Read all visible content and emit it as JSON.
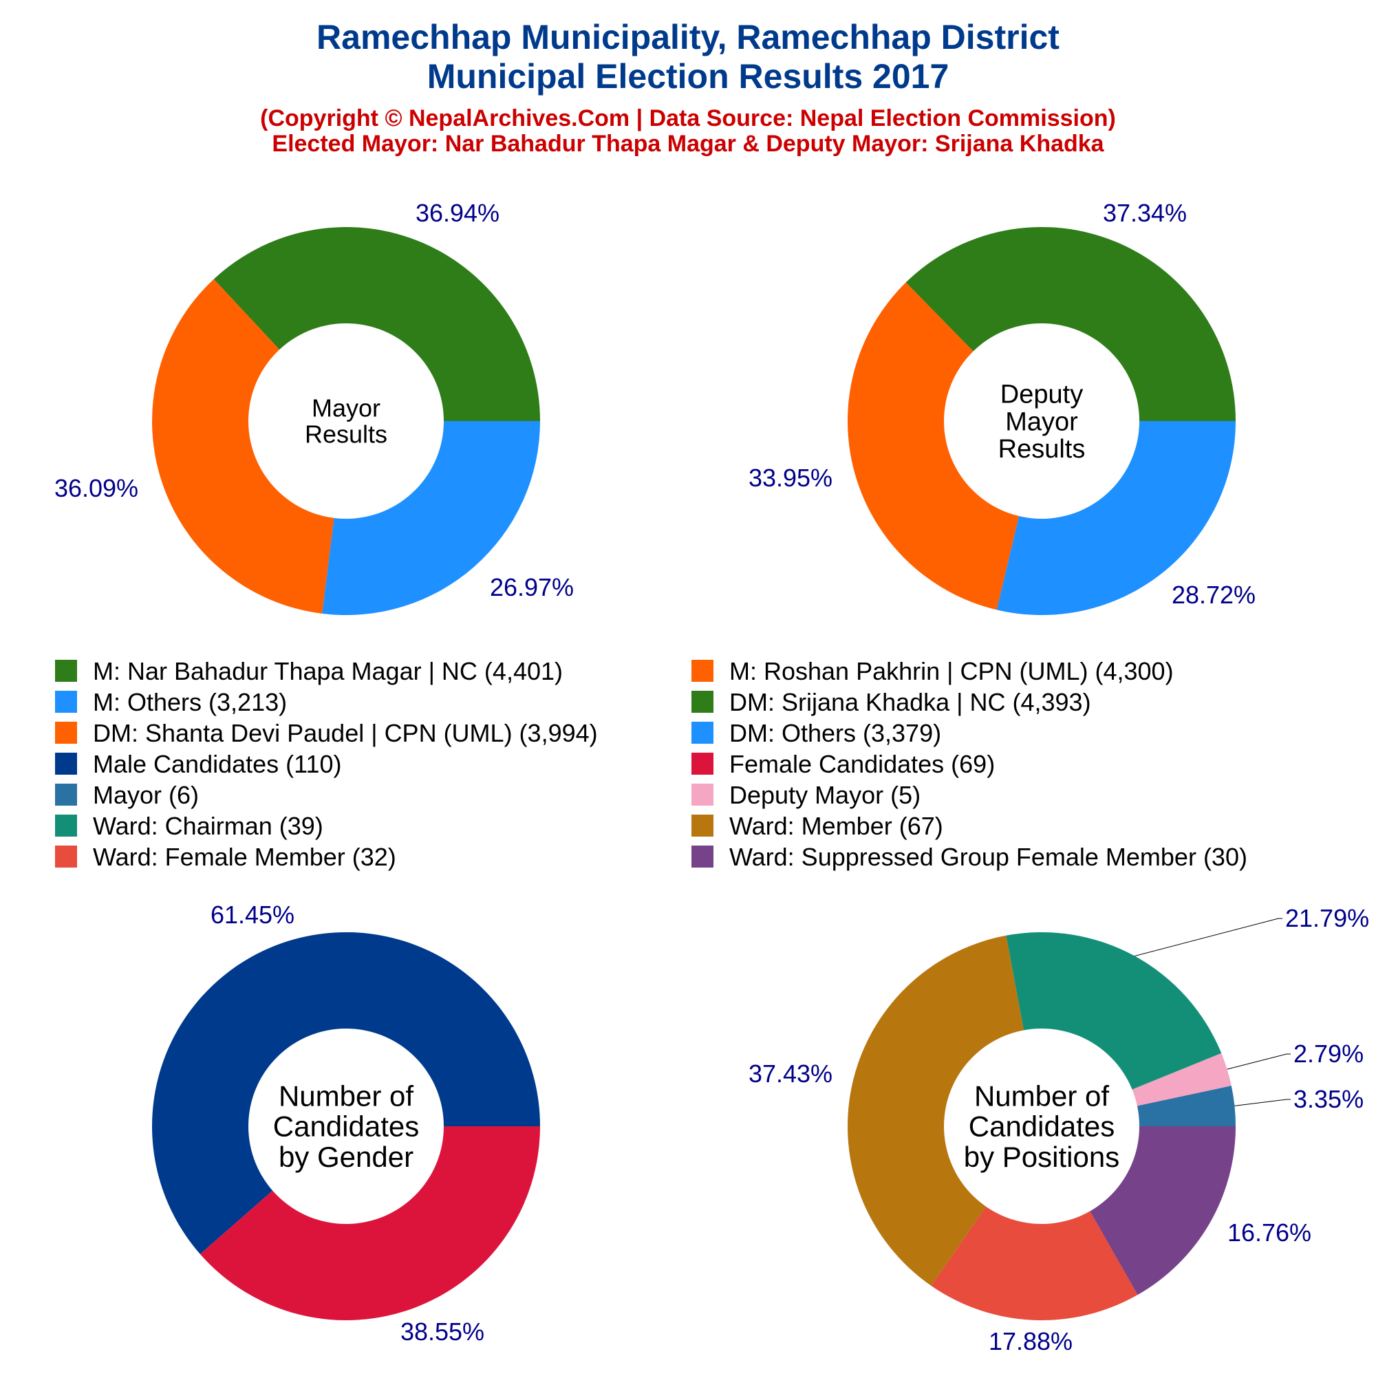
{
  "header": {
    "title_line1": "Ramechhap Municipality, Ramechhap District",
    "title_line2": "Municipal Election Results 2017",
    "subtitle_line1": "(Copyright © NepalArchives.Com | Data Source: Nepal Election Commission)",
    "subtitle_line2": "Elected Mayor: Nar Bahadur Thapa Magar & Deputy Mayor: Srijana Khadka"
  },
  "colors": {
    "title": "#003A8C",
    "subtitle": "#CC0000",
    "pct_label": "#00008B",
    "center_text": "#000000"
  },
  "legend": [
    {
      "label": "M: Nar Bahadur Thapa Magar | NC (4,401)",
      "color": "#2E7D18"
    },
    {
      "label": "M: Roshan Pakhrin | CPN (UML) (4,300)",
      "color": "#FF6000"
    },
    {
      "label": "M: Others (3,213)",
      "color": "#1E90FF"
    },
    {
      "label": "DM: Srijana Khadka | NC (4,393)",
      "color": "#2E7D18"
    },
    {
      "label": "DM: Shanta Devi Paudel | CPN (UML) (3,994)",
      "color": "#FF6000"
    },
    {
      "label": "DM: Others (3,379)",
      "color": "#1E90FF"
    },
    {
      "label": "Male Candidates (110)",
      "color": "#003A8C"
    },
    {
      "label": "Female Candidates (69)",
      "color": "#DC143C"
    },
    {
      "label": "Mayor (6)",
      "color": "#2B72A4"
    },
    {
      "label": "Deputy Mayor (5)",
      "color": "#F4A6C3"
    },
    {
      "label": "Ward: Chairman (39)",
      "color": "#138F78"
    },
    {
      "label": "Ward: Member (67)",
      "color": "#B8760F"
    },
    {
      "label": "Ward: Female Member (32)",
      "color": "#E74C3C"
    },
    {
      "label": "Ward: Suppressed Group Female Member (30)",
      "color": "#76428A"
    }
  ],
  "chart_data": [
    {
      "type": "pie",
      "center_label": [
        "Mayor",
        "Results"
      ],
      "slices": [
        {
          "name": "M: Nar Bahadur Thapa Magar | NC",
          "value": 4401,
          "label": "36.94%",
          "color": "#2E7D18"
        },
        {
          "name": "M: Roshan Pakhrin | CPN (UML)",
          "value": 4300,
          "label": "36.09%",
          "color": "#FF6000"
        },
        {
          "name": "M: Others",
          "value": 3213,
          "label": "26.97%",
          "color": "#1E90FF"
        }
      ]
    },
    {
      "type": "pie",
      "center_label": [
        "Deputy",
        "Mayor",
        "Results"
      ],
      "slices": [
        {
          "name": "DM: Srijana Khadka | NC",
          "value": 4393,
          "label": "37.34%",
          "color": "#2E7D18"
        },
        {
          "name": "DM: Shanta Devi Paudel | CPN (UML)",
          "value": 3994,
          "label": "33.95%",
          "color": "#FF6000"
        },
        {
          "name": "DM: Others",
          "value": 3379,
          "label": "28.72%",
          "color": "#1E90FF"
        }
      ]
    },
    {
      "type": "pie",
      "center_label": [
        "Number of",
        "Candidates",
        "by Gender"
      ],
      "slices": [
        {
          "name": "Male Candidates",
          "value": 110,
          "label": "61.45%",
          "color": "#003A8C"
        },
        {
          "name": "Female Candidates",
          "value": 69,
          "label": "38.55%",
          "color": "#DC143C"
        }
      ]
    },
    {
      "type": "pie",
      "center_label": [
        "Number of",
        "Candidates",
        "by Positions"
      ],
      "slices": [
        {
          "name": "Mayor",
          "value": 6,
          "label": "3.35%",
          "color": "#2B72A4"
        },
        {
          "name": "Deputy Mayor",
          "value": 5,
          "label": "2.79%",
          "color": "#F4A6C3"
        },
        {
          "name": "Ward: Chairman",
          "value": 39,
          "label": "21.79%",
          "color": "#138F78"
        },
        {
          "name": "Ward: Member",
          "value": 67,
          "label": "37.43%",
          "color": "#B8760F"
        },
        {
          "name": "Ward: Female Member",
          "value": 32,
          "label": "17.88%",
          "color": "#E74C3C"
        },
        {
          "name": "Ward: Suppressed Group Female Member",
          "value": 30,
          "label": "16.76%",
          "color": "#76428A"
        }
      ]
    }
  ]
}
